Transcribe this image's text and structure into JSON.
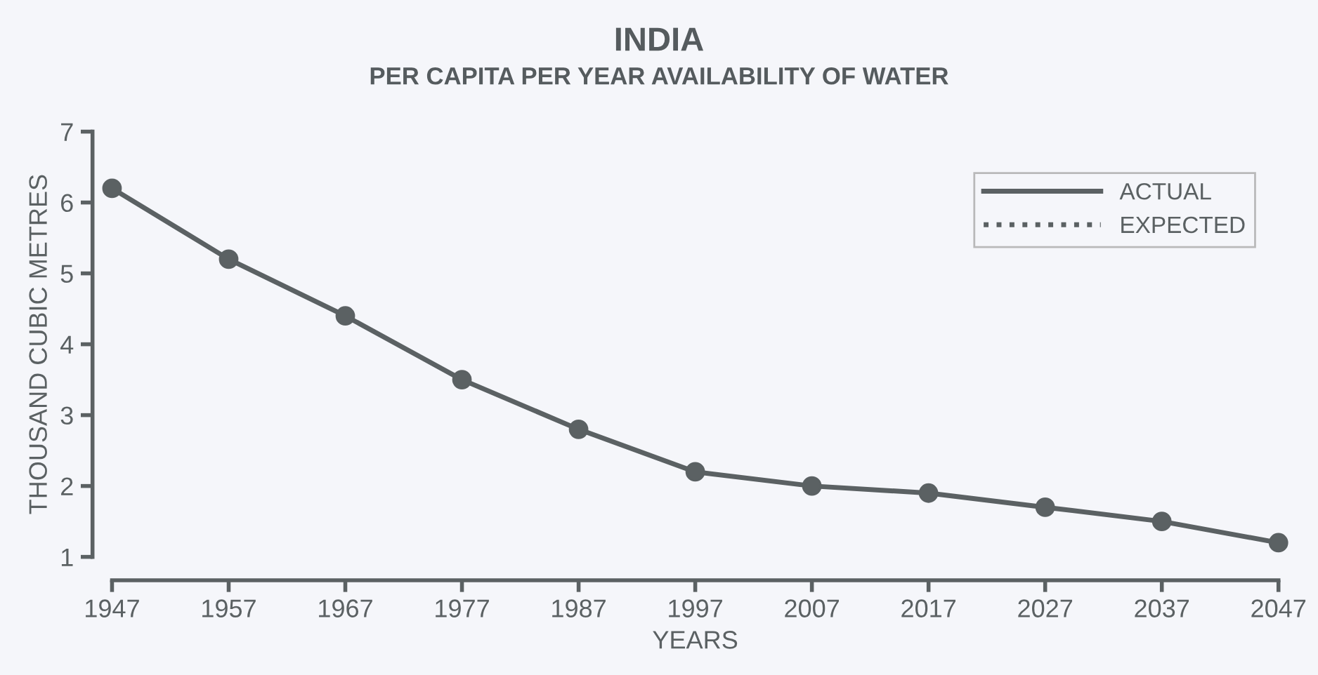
{
  "chart_data": {
    "type": "line",
    "title": "INDIA",
    "subtitle": "PER CAPITA PER YEAR AVAILABILITY OF WATER",
    "xlabel": "YEARS",
    "ylabel": "THOUSAND CUBIC METRES",
    "x": [
      1947,
      1957,
      1967,
      1977,
      1987,
      1997,
      2007,
      2017,
      2027,
      2037,
      2047
    ],
    "series": [
      {
        "name": "ACTUAL",
        "color": "#5b6163",
        "line_style": "solid",
        "marker": "circle",
        "values": [
          6.2,
          5.2,
          4.4,
          3.5,
          2.8,
          2.2,
          2.0,
          1.9,
          1.7,
          1.5,
          1.2
        ]
      },
      {
        "name": "EXPECTED",
        "color": "#5b6163",
        "line_style": "dotted",
        "marker": "none",
        "values": [
          null,
          null,
          null,
          null,
          null,
          null,
          null,
          null,
          null,
          null,
          null
        ]
      }
    ],
    "xlim": [
      1947,
      2047
    ],
    "xticks": [
      1947,
      1957,
      1967,
      1977,
      1987,
      1997,
      2007,
      2017,
      2027,
      2037,
      2047
    ],
    "ylim": [
      1,
      7
    ],
    "yticks": [
      1,
      2,
      3,
      4,
      5,
      6,
      7
    ],
    "grid": false,
    "legend": "top right"
  }
}
